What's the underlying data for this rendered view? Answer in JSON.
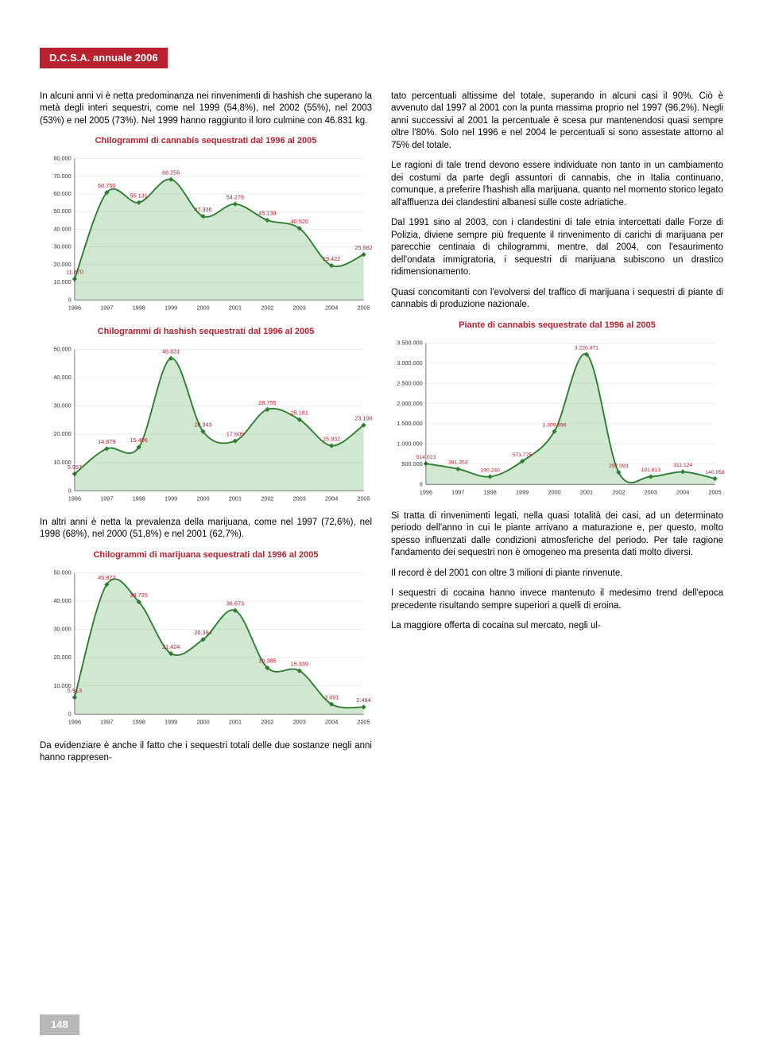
{
  "header": "D.C.S.A. annuale 2006",
  "page_number": "148",
  "para_intro": "In alcuni anni vi è netta predominanza nei rinvenimenti di hashish che superano la metà degli interi sequestri, come nel 1999 (54,8%), nel 2002 (55%), nel 2003 (53%) e nel 2005 (73%). Nel 1999 hanno raggiunto il loro culmine con 46.831 kg.",
  "para_mid": "In altri anni è netta la prevalenza della marijuana, come nel 1997 (72,6%), nel 1998 (68%), nel 2000 (51,8%) e nel 2001 (62,7%).",
  "para_after_marijuana": "Da evidenziare è anche il fatto che i sequestri totali delle due sostanze negli anni hanno rappresen-",
  "right_para1": "tato percentuali altissime del totale, superando in alcuni casi il 90%. Ciò è avvenuto dal 1997 al 2001 con la punta massima proprio nel 1997 (96,2%). Negli anni successivi al 2001 la percentuale è scesa pur mantenendosi quasi sempre oltre l'80%. Solo nel 1996 e nel 2004 le percentuali si sono assestate attorno al 75% del totale.",
  "right_para2": "Le ragioni di tale trend devono essere individuate non tanto in un cambiamento dei costumi da parte degli assuntori di cannabis, che in Italia continuano, comunque, a preferire l'hashish alla marijuana, quanto nel momento storico legato all'affluenza dei clandestini albanesi sulle coste adriatiche.",
  "right_para3": "Dal 1991 sino al 2003, con i clandestini di tale etnia intercettati dalle Forze di Polizia, diviene sempre più frequente il rinvenimento di carichi di marijuana per parecchie centinaia di chilogrammi, mentre, dal 2004, con l'esaurimento dell'ondata immigratoria, i sequestri di marijuana subiscono un drastico ridimensionamento.",
  "right_para4": "Quasi concomitanti con l'evolversi del traffico di marijuana i sequestri di piante di cannabis di produzione nazionale.",
  "right_para5": "Si tratta di rinvenimenti legati, nella quasi totalità dei casi, ad un determinato periodo dell'anno in cui le piante arrivano a maturazione e, per questo, molto spesso influenzati dalle condizioni atmosferiche del periodo. Per tale ragione l'andamento dei sequestri non è omogeneo ma presenta dati molto diversi.",
  "right_para6": "Il record è del 2001 con oltre 3 milioni di piante rinvenute.",
  "right_para7": "I sequestri di cocaina hanno invece mantenuto il medesimo trend dell'epoca precedente risultando sempre superiori a quelli di eroina.",
  "right_para8": "La maggiore offerta di cocaina sul mercato, negli ul-",
  "chart_cannabis": {
    "title": "Chilogrammi di cannabis sequestrati dal 1996 al 2005",
    "type": "line",
    "years": [
      "1996",
      "1997",
      "1998",
      "1999",
      "2000",
      "2001",
      "2002",
      "2003",
      "2004",
      "2005"
    ],
    "values": [
      11870,
      60750,
      55131,
      68255,
      47336,
      54278,
      45139,
      40520,
      19422,
      25682
    ],
    "labels": [
      "11.870",
      "60.750",
      "55.131",
      "68.255",
      "47.336",
      "54.278",
      "45.139",
      "40.520",
      "19.422",
      "25.682"
    ],
    "ymax": 80000,
    "ystep": 10000,
    "yticks": [
      "0",
      "10.000",
      "20.000",
      "30.000",
      "40.000",
      "50.000",
      "60.000",
      "70.000",
      "80.000"
    ],
    "line_color": "#2e7d32",
    "marker_color": "#2e7d32",
    "fill_color": "rgba(120,190,120,0.35)",
    "label_color": "#b8212f",
    "axis_color": "#333333",
    "background": "#ffffff",
    "label_fontsize": 7,
    "axis_fontsize": 7
  },
  "chart_hashish": {
    "title": "Chilogrammi di hashish sequestrati dal 1996 al 2005",
    "type": "line",
    "years": [
      "1996",
      "1997",
      "1998",
      "1999",
      "2000",
      "2001",
      "2002",
      "2003",
      "2004",
      "2005"
    ],
    "values": [
      5957,
      14879,
      15406,
      46831,
      20943,
      17605,
      28755,
      25181,
      15932,
      23198
    ],
    "labels": [
      "5.957",
      "14.879",
      "15.406",
      "46.831",
      "20.943",
      "17.605",
      "28.755",
      "25.181",
      "15.932",
      "23.198"
    ],
    "ymax": 50000,
    "ystep": 10000,
    "yticks": [
      "0",
      "10.000",
      "20.000",
      "30.000",
      "40.000",
      "50.000"
    ],
    "line_color": "#2e7d32",
    "marker_color": "#2e7d32",
    "fill_color": "rgba(120,190,120,0.35)",
    "label_color": "#b8212f",
    "axis_color": "#333333",
    "background": "#ffffff",
    "label_fontsize": 7,
    "axis_fontsize": 7
  },
  "chart_marijuana": {
    "title": "Chilogrammi di marijuana sequestrati dal 1996 al 2005",
    "type": "line",
    "years": [
      "1996",
      "1997",
      "1998",
      "1999",
      "2000",
      "2001",
      "2002",
      "2003",
      "2004",
      "2005"
    ],
    "values": [
      5913,
      45872,
      39725,
      21424,
      26394,
      36673,
      16385,
      15339,
      3491,
      2484
    ],
    "labels": [
      "5.913",
      "45.872",
      "39.725",
      "21.424",
      "26.394",
      "36.673",
      "16.385",
      "15.339",
      "3.491",
      "2.484"
    ],
    "ymax": 50000,
    "ystep": 10000,
    "yticks": [
      "0",
      "10.000",
      "20.000",
      "30.000",
      "40.000",
      "50.000"
    ],
    "line_color": "#2e7d32",
    "marker_color": "#2e7d32",
    "fill_color": "rgba(120,190,120,0.35)",
    "label_color": "#b8212f",
    "axis_color": "#333333",
    "background": "#ffffff",
    "label_fontsize": 7,
    "axis_fontsize": 7
  },
  "chart_piante": {
    "title": "Piante di cannabis sequestrate dal 1996 al 2005",
    "type": "line",
    "years": [
      "1996",
      "1997",
      "1998",
      "1999",
      "2000",
      "2001",
      "2002",
      "2003",
      "2004",
      "2005"
    ],
    "values": [
      514023,
      381353,
      190240,
      571775,
      1309398,
      3220471,
      297093,
      191813,
      311124,
      140958
    ],
    "labels": [
      "514.023",
      "381.353",
      "190.240",
      "571.775",
      "1.309.398",
      "3.220.471",
      "297.093",
      "191.813",
      "311.124",
      "140.958"
    ],
    "ymax": 3500000,
    "ystep": 500000,
    "yticks": [
      "0",
      "500.000",
      "1.000.000",
      "1.500.000",
      "2.000.000",
      "2.500.000",
      "3.000.000",
      "3.500.000"
    ],
    "line_color": "#2e7d32",
    "marker_color": "#2e7d32",
    "fill_color": "rgba(120,190,120,0.35)",
    "label_color": "#b8212f",
    "axis_color": "#333333",
    "background": "#ffffff",
    "label_fontsize": 6.5,
    "axis_fontsize": 7
  }
}
